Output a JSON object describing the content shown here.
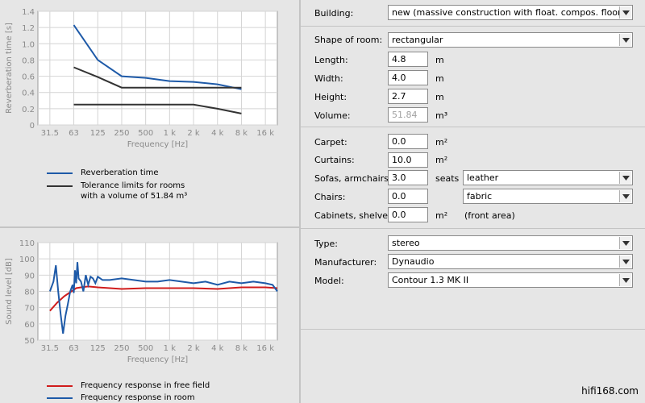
{
  "chart_data": [
    {
      "type": "line",
      "title": "",
      "xlabel": "Frequency [Hz]",
      "ylabel": "Reverberation time [s]",
      "x_ticks": [
        "31.5",
        "63",
        "125",
        "250",
        "500",
        "1 k",
        "2 k",
        "4 k",
        "8 k",
        "16 k"
      ],
      "y_ticks": [
        "0",
        "0.2",
        "0.4",
        "0.6",
        "0.8",
        "1.0",
        "1.2",
        "1.4"
      ],
      "ylim": [
        0,
        1.4
      ],
      "grid": true,
      "series": [
        {
          "name": "Reverberation time",
          "color": "#1e5aa8",
          "x": [
            "63",
            "125",
            "250",
            "500",
            "1 k",
            "2 k",
            "4 k",
            "8 k"
          ],
          "values": [
            1.23,
            0.8,
            0.6,
            0.58,
            0.54,
            0.53,
            0.5,
            0.44
          ]
        },
        {
          "name": "Tolerance limits for rooms with a volume of  51.84 m³",
          "color": "#333333",
          "x": [
            "63",
            "125",
            "250",
            "500",
            "1 k",
            "2 k",
            "4 k",
            "8 k"
          ],
          "values": [
            0.71,
            0.59,
            0.46,
            0.46,
            0.46,
            0.46,
            0.46,
            0.46
          ]
        },
        {
          "name": "",
          "color": "#333333",
          "x": [
            "63",
            "125",
            "250",
            "500",
            "1 k",
            "2 k",
            "4 k",
            "8 k"
          ],
          "values": [
            0.25,
            0.25,
            0.25,
            0.25,
            0.25,
            0.25,
            0.2,
            0.14
          ]
        }
      ]
    },
    {
      "type": "line",
      "title": "",
      "xlabel": "Frequency [Hz]",
      "ylabel": "Sound level [dB]",
      "x_ticks": [
        "31.5",
        "63",
        "125",
        "250",
        "500",
        "1 k",
        "2 k",
        "4 k",
        "8 k",
        "16 k"
      ],
      "y_ticks": [
        "50",
        "60",
        "70",
        "80",
        "90",
        "100",
        "110"
      ],
      "ylim": [
        50,
        110
      ],
      "grid": true,
      "series": [
        {
          "name": "Frequency response in free field",
          "color": "#d01c1c",
          "x": [
            0,
            0.3,
            0.6,
            0.9,
            1.1,
            1.3,
            1.6,
            2,
            2.5,
            3,
            4,
            5,
            6,
            7,
            8,
            9,
            9.5
          ],
          "values": [
            68,
            73,
            77,
            80,
            82,
            82.5,
            83,
            82.5,
            82,
            81.5,
            82,
            82,
            82,
            81.5,
            82.5,
            82.5,
            82
          ]
        },
        {
          "name": "Frequency response in room",
          "color": "#1e5aa8",
          "x": [
            0,
            0.15,
            0.25,
            0.35,
            0.45,
            0.55,
            0.65,
            0.75,
            0.85,
            0.95,
            1,
            1.05,
            1.1,
            1.15,
            1.2,
            1.3,
            1.4,
            1.5,
            1.6,
            1.7,
            1.8,
            1.9,
            2,
            2.2,
            2.5,
            3,
            3.5,
            4,
            4.5,
            5,
            5.5,
            6,
            6.5,
            7,
            7.5,
            8,
            8.5,
            9,
            9.3,
            9.5
          ],
          "values": [
            80,
            86,
            96,
            80,
            66,
            54,
            65,
            72,
            80,
            84,
            79,
            93,
            85,
            98,
            88,
            86,
            80,
            90,
            84,
            89,
            88,
            85,
            89,
            87,
            87,
            88,
            87,
            86,
            86,
            87,
            86,
            85,
            86,
            84,
            86,
            85,
            86,
            85,
            84,
            80
          ]
        }
      ]
    }
  ],
  "legend_top": [
    {
      "label": "Reverberation time",
      "color": "#1e5aa8"
    },
    {
      "label": "Tolerance limits for rooms\nwith a volume of  51.84 m³",
      "color": "#333333"
    }
  ],
  "legend_bottom": [
    {
      "label": "Frequency response in free field",
      "color": "#d01c1c"
    },
    {
      "label": "Frequency response in room",
      "color": "#1e5aa8"
    }
  ],
  "form": {
    "building_label": "Building:",
    "building_value": "new (massive construction with float. compos. floor)",
    "shape_label": "Shape of room:",
    "shape_value": "rectangular",
    "length_label": "Length:",
    "length_value": "4.8",
    "length_unit": "m",
    "width_label": "Width:",
    "width_value": "4.0",
    "width_unit": "m",
    "height_label": "Height:",
    "height_value": "2.7",
    "height_unit": "m",
    "volume_label": "Volume:",
    "volume_value": "51.84",
    "volume_unit": "m³",
    "carpet_label": "Carpet:",
    "carpet_value": "0.0",
    "carpet_unit": "m²",
    "curtains_label": "Curtains:",
    "curtains_value": "10.0",
    "curtains_unit": "m²",
    "sofas_label": "Sofas, armchairs:",
    "sofas_value": "3.0",
    "sofas_unit": "seats",
    "sofas_material": "leather",
    "chairs_label": "Chairs:",
    "chairs_value": "0.0",
    "chairs_material": "fabric",
    "cabinets_label": "Cabinets, shelves:",
    "cabinets_value": "0.0",
    "cabinets_unit": "m²",
    "cabinets_note": "(front area)",
    "type_label": "Type:",
    "type_value": "stereo",
    "manufacturer_label": "Manufacturer:",
    "manufacturer_value": "Dynaudio",
    "model_label": "Model:",
    "model_value": "Contour 1.3 MK II"
  },
  "watermark": "hifi168.com"
}
